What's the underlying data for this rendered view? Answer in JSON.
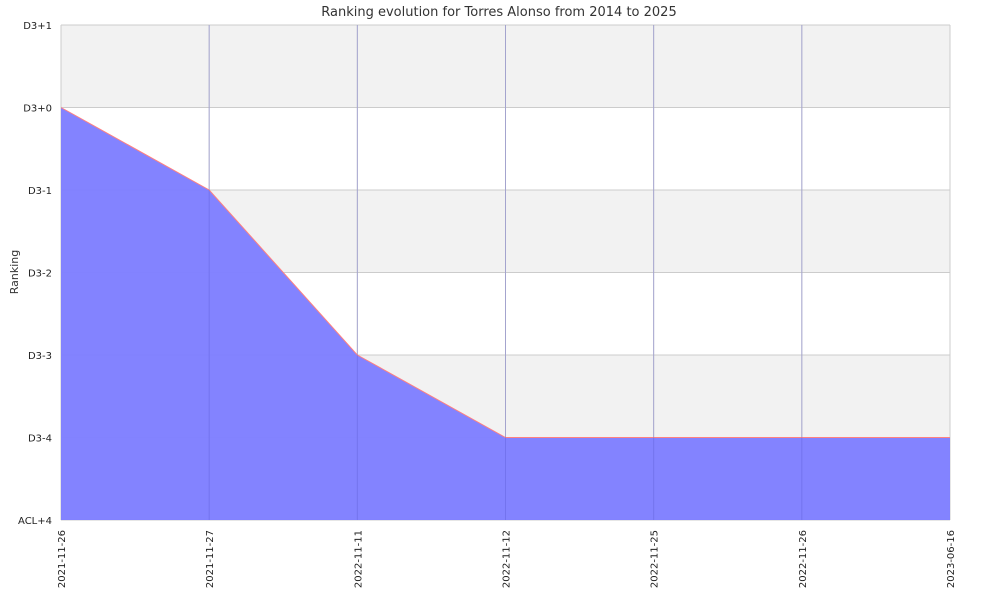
{
  "chart_data": {
    "type": "area",
    "title": "Ranking evolution for Torres Alonso from 2014 to 2025",
    "xlabel": "",
    "ylabel": "Ranking",
    "y_levels": [
      "ACL+4",
      "D3-4",
      "D3-3",
      "D3-2",
      "D3-1",
      "D3+0",
      "D3+1"
    ],
    "x": [
      "2021-11-26",
      "2021-11-27",
      "2022-11-11",
      "2022-11-12",
      "2022-11-25",
      "2022-11-26",
      "2023-06-16"
    ],
    "series": [
      {
        "values": [
          "D3+0",
          "D3-1",
          "D3-3",
          "D3-4",
          "D3-4",
          "D3-4",
          "D3-4"
        ]
      }
    ],
    "x_axis_scale": "categorical (evenly spaced dates)",
    "grid": true,
    "alternating_band_color": "#f2f2f2",
    "fill_color": "#7f7fff",
    "line_color": "#ff8080",
    "gridline_color": "#cccccc"
  }
}
